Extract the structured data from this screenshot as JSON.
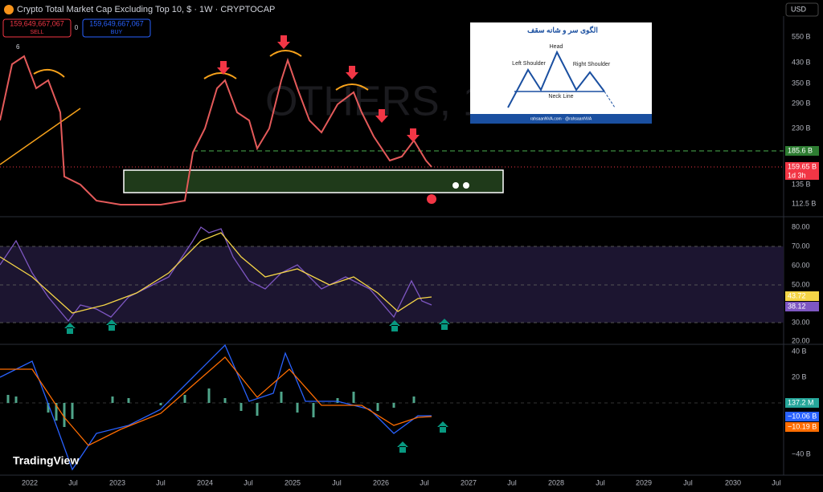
{
  "header": {
    "symbol": "Crypto Total Market Cap Excluding Top 10, $ · 1W · CRYPTOCAP",
    "sell_price": "159,649,667,067",
    "sell": "SELL",
    "spread": "0",
    "buy_price": "159,649,667,067",
    "buy": "BUY",
    "indicator_count": "6",
    "currency": "USD"
  },
  "watermark": "OTHERS, 1",
  "price_axis": {
    "ticks": [
      "550 B",
      "430 B",
      "350 B",
      "290 B",
      "230 B",
      "135 B",
      "112.5 B"
    ],
    "neckline_label": "185.6 B",
    "last_price": "159.65 B",
    "countdown": "1d 3h"
  },
  "rsi_axis": {
    "ticks": [
      "80.00",
      "70.00",
      "60.00",
      "50.00",
      "30.00",
      "20.00"
    ],
    "ma_value": "43.72",
    "rsi_value": "38.12"
  },
  "macd_axis": {
    "ticks": [
      "40 B",
      "20 B",
      "−40 B"
    ],
    "histogram_value": "137.2 M",
    "macd_value": "−10.06 B",
    "signal_value": "−10.19 B"
  },
  "time_axis": [
    "2022",
    "Jul",
    "2023",
    "Jul",
    "2024",
    "Jul",
    "2025",
    "Jul",
    "2026",
    "Jul",
    "2027",
    "Jul",
    "2028",
    "Jul",
    "2029",
    "Jul",
    "2030",
    "Jul"
  ],
  "inset": {
    "title": "الگوی سر و شانه سقف",
    "head": "Head",
    "left_shoulder": "Left Shoulder",
    "right_shoulder": "Right Shoulder",
    "neck_line": "Neck Line",
    "footer": "rahsaanNVA.com · @rahsaanNVA"
  },
  "brand": "TradingView"
}
